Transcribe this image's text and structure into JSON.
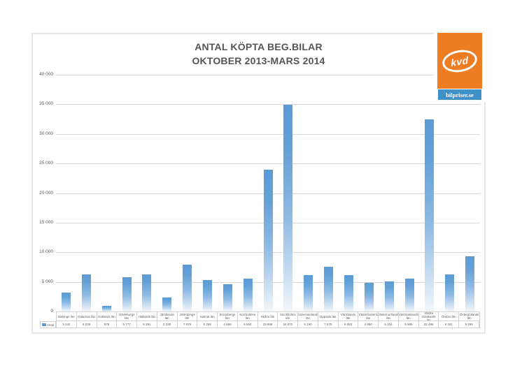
{
  "title": {
    "line1": "ANTAL KÖPTA BEG.BILAR",
    "line2": "OKTOBER 2013-MARS 2014"
  },
  "logo": {
    "brand": "kvd",
    "sub": "bilpriser.se",
    "orange_color": "#ED7D23",
    "blue_color": "#4191C9"
  },
  "legend": {
    "series_label": "Antal"
  },
  "y_axis": {
    "ticks": [
      "40 000",
      "35 000",
      "30 000",
      "25 000",
      "20 000",
      "15 000",
      "10 000",
      "5 000",
      "0"
    ]
  },
  "chart_data": {
    "type": "bar",
    "title": "ANTAL KÖPTA BEG.BILAR OKTOBER 2013-MARS 2014",
    "series_name": "Antal",
    "categories": [
      "Blekinge län",
      "Dalarnas län",
      "Gotlands län",
      "Gävleborgs län",
      "Hallands län",
      "Jämtlands län",
      "Jönköpings län",
      "Kalmar län",
      "Kronobergs län",
      "Norrbottens län",
      "Skåne län",
      "Stockholms län",
      "Södermanlands län",
      "Uppsala län",
      "Värmlands län",
      "Västerbottens län",
      "Västernorrlands län",
      "Västmanlands län",
      "Västra Götalands län",
      "Örebro län",
      "Östergötlands län"
    ],
    "values": [
      3242,
      6235,
      978,
      5777,
      6291,
      2330,
      7875,
      5258,
      4659,
      5550,
      23958,
      34870,
      6190,
      7570,
      6083,
      4880,
      5104,
      5585,
      32495,
      6281,
      9299
    ],
    "value_labels": [
      "3 242",
      "6 235",
      "978",
      "5 777",
      "6 291",
      "2 330",
      "7 875",
      "5 258",
      "4 659",
      "5 550",
      "23 958",
      "34 870",
      "6 190",
      "7 570",
      "6 083",
      "4 880",
      "5 104",
      "5 585",
      "32 495",
      "6 281",
      "9 299"
    ],
    "xlabel": "",
    "ylabel": "",
    "ylim": [
      0,
      40000
    ],
    "grid": true,
    "legend_position": "bottom-left-table-key",
    "bar_color": "#5B9BD5",
    "gridline_color": "#D9D9D9"
  }
}
